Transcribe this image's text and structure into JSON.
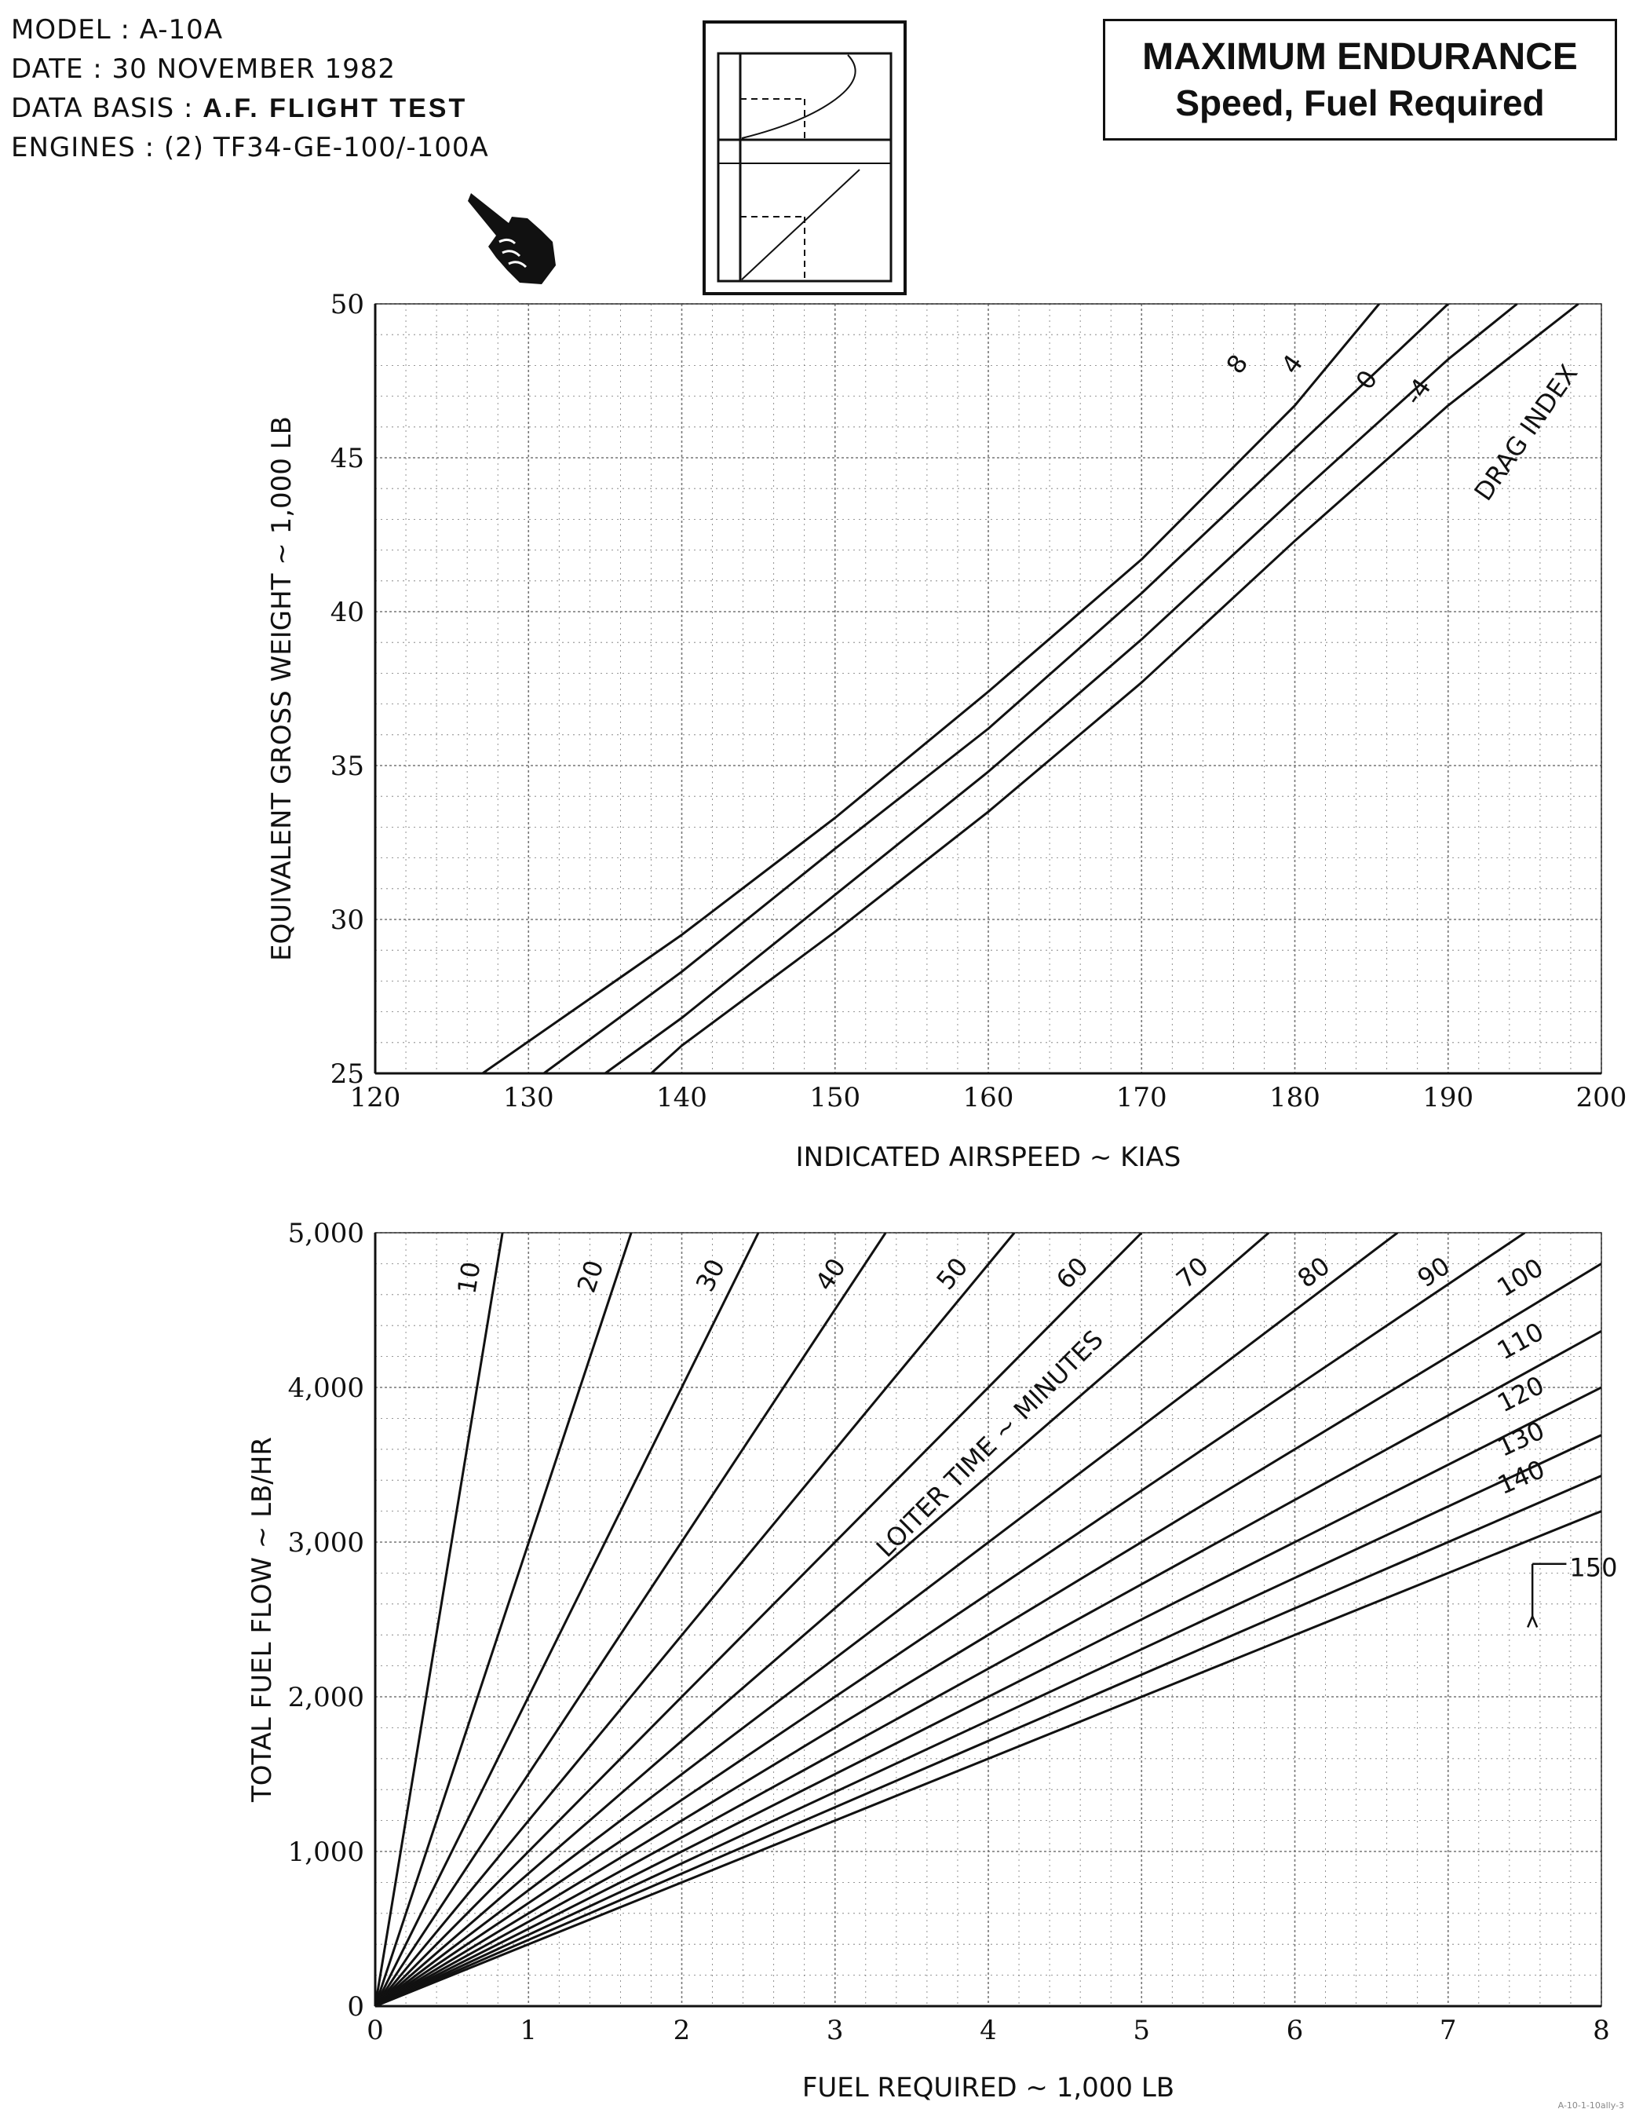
{
  "header": {
    "model": "MODEL : A-10A",
    "date": "DATE : 30 NOVEMBER 1982",
    "data_basis_label": "DATA BASIS :",
    "data_basis_value": "A.F. FLIGHT TEST",
    "engines": "ENGINES : (2) TF34-GE-100/-100A"
  },
  "title": {
    "line1": "MAXIMUM ENDURANCE",
    "line2": "Speed, Fuel Required"
  },
  "icons": {
    "pointer": "pointing-hand-icon",
    "legend": "chart-usage-thumbnail-icon"
  },
  "footer": {
    "code": "A-10-1-10ally-3"
  },
  "chart_data": [
    {
      "type": "line",
      "xlabel": "INDICATED AIRSPEED ~ KIAS",
      "ylabel": "EQUIVALENT GROSS WEIGHT ~ 1,000 LB",
      "xlim": [
        120,
        200
      ],
      "ylim": [
        25,
        50
      ],
      "xticks": [
        120,
        130,
        140,
        150,
        160,
        170,
        180,
        190,
        200
      ],
      "yticks": [
        25,
        30,
        35,
        40,
        45,
        50
      ],
      "grid": true,
      "annotation": "DRAG INDEX",
      "series": [
        {
          "name": "8",
          "x": [
            127,
            140,
            150,
            160,
            170,
            180,
            185.5
          ],
          "y": [
            25,
            29.5,
            33.3,
            37.4,
            41.7,
            46.7,
            50
          ]
        },
        {
          "name": "4",
          "x": [
            131,
            140,
            150,
            160,
            170,
            180,
            190,
            193.5
          ],
          "y": [
            25,
            28.3,
            32.3,
            36.2,
            40.6,
            45.3,
            50,
            51
          ]
        },
        {
          "name": "0",
          "x": [
            135,
            140,
            150,
            160,
            170,
            180,
            190,
            194.5
          ],
          "y": [
            25,
            26.8,
            30.8,
            34.8,
            39.1,
            43.7,
            48.2,
            50
          ]
        },
        {
          "name": "-4",
          "x": [
            138,
            140,
            150,
            160,
            170,
            180,
            190,
            198.5
          ],
          "y": [
            25,
            25.9,
            29.6,
            33.5,
            37.7,
            42.3,
            46.7,
            50
          ]
        }
      ]
    },
    {
      "type": "line",
      "xlabel": "FUEL REQUIRED ~ 1,000 LB",
      "ylabel": "TOTAL FUEL FLOW ~ LB/HR",
      "xlim": [
        0,
        8
      ],
      "ylim": [
        0,
        5000
      ],
      "xticks": [
        0,
        1,
        2,
        3,
        4,
        5,
        6,
        7,
        8
      ],
      "xtick_labels": [
        "0",
        "1",
        "2",
        "3",
        "4",
        "5",
        "6",
        "7",
        "8"
      ],
      "yticks": [
        0,
        1000,
        2000,
        3000,
        4000,
        5000
      ],
      "ytick_labels": [
        "0",
        "1,000",
        "2,000",
        "3,000",
        "4,000",
        "5,000"
      ],
      "grid": true,
      "annotation": "LOITER TIME ~ MINUTES",
      "series": [
        {
          "name": "10",
          "x": [
            0,
            0.83
          ],
          "y": [
            0,
            5000
          ]
        },
        {
          "name": "20",
          "x": [
            0,
            1.67
          ],
          "y": [
            0,
            5000
          ]
        },
        {
          "name": "30",
          "x": [
            0,
            2.5
          ],
          "y": [
            0,
            5000
          ]
        },
        {
          "name": "40",
          "x": [
            0,
            3.33
          ],
          "y": [
            0,
            5000
          ]
        },
        {
          "name": "50",
          "x": [
            0,
            4.17
          ],
          "y": [
            0,
            5000
          ]
        },
        {
          "name": "60",
          "x": [
            0,
            5.0
          ],
          "y": [
            0,
            5000
          ]
        },
        {
          "name": "70",
          "x": [
            0,
            5.83
          ],
          "y": [
            0,
            5000
          ]
        },
        {
          "name": "80",
          "x": [
            0,
            6.67
          ],
          "y": [
            0,
            5000
          ]
        },
        {
          "name": "90",
          "x": [
            0,
            7.5
          ],
          "y": [
            0,
            5000
          ]
        },
        {
          "name": "100",
          "x": [
            0,
            8.0
          ],
          "y": [
            0,
            4800
          ]
        },
        {
          "name": "110",
          "x": [
            0,
            8.0
          ],
          "y": [
            0,
            4364
          ]
        },
        {
          "name": "120",
          "x": [
            0,
            8.0
          ],
          "y": [
            0,
            4000
          ]
        },
        {
          "name": "130",
          "x": [
            0,
            8.0
          ],
          "y": [
            0,
            3692
          ]
        },
        {
          "name": "140",
          "x": [
            0,
            8.0
          ],
          "y": [
            0,
            3429
          ]
        },
        {
          "name": "150",
          "x": [
            0,
            8.0
          ],
          "y": [
            0,
            3200
          ]
        }
      ]
    }
  ]
}
